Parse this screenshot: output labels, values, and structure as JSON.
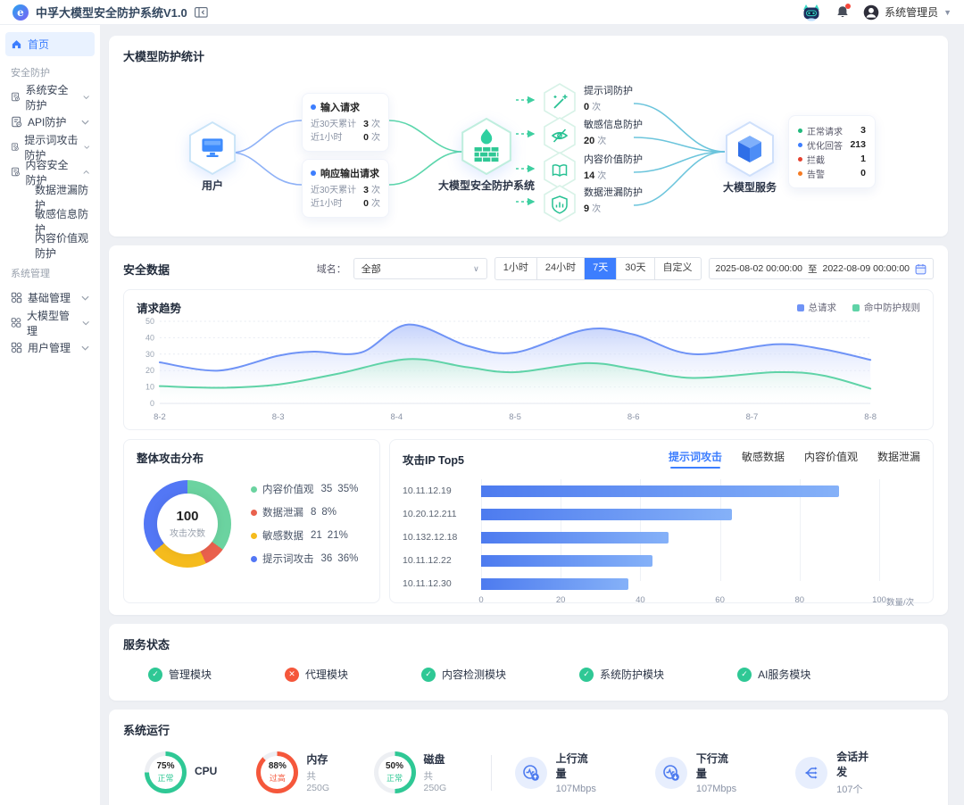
{
  "header": {
    "title": "中孚大模型安全防护系统V1.0",
    "user": "系统管理员"
  },
  "sidebar": {
    "items": [
      {
        "label": "首页"
      },
      {
        "label": "安全防护"
      },
      {
        "label": "系统安全防护"
      },
      {
        "label": "API防护"
      },
      {
        "label": "提示词攻击防护"
      },
      {
        "label": "内容安全防护"
      },
      {
        "label": "数据泄漏防护"
      },
      {
        "label": "敏感信息防护"
      },
      {
        "label": "内容价值观防护"
      },
      {
        "label": "系统管理"
      },
      {
        "label": "基础管理"
      },
      {
        "label": "大模型管理"
      },
      {
        "label": "用户管理"
      }
    ]
  },
  "flow": {
    "title": "大模型防护统计",
    "user_label": "用户",
    "input_card": {
      "title": "输入请求",
      "rows": [
        {
          "k": "近30天累计",
          "v": "3",
          "u": "次"
        },
        {
          "k": "近1小时",
          "v": "0",
          "u": "次"
        }
      ]
    },
    "output_card": {
      "title": "响应输出请求",
      "rows": [
        {
          "k": "近30天累计",
          "v": "3",
          "u": "次"
        },
        {
          "k": "近1小时",
          "v": "0",
          "u": "次"
        }
      ]
    },
    "firewall_label": "大模型安全防护系统",
    "nodes": [
      {
        "name": "提示词防护",
        "count": "0",
        "unit": "次"
      },
      {
        "name": "敏感信息防护",
        "count": "20",
        "unit": "次"
      },
      {
        "name": "内容价值防护",
        "count": "14",
        "unit": "次"
      },
      {
        "name": "数据泄漏防护",
        "count": "9",
        "unit": "次"
      }
    ],
    "service_label": "大模型服务",
    "stats": [
      {
        "name": "正常请求",
        "value": "3",
        "color": "#21b97d"
      },
      {
        "name": "优化回答",
        "value": "213",
        "color": "#3d7efe"
      },
      {
        "name": "拦截",
        "value": "1",
        "color": "#e5412f"
      },
      {
        "name": "告警",
        "value": "0",
        "color": "#f57b23"
      }
    ]
  },
  "security": {
    "title": "安全数据",
    "domain_label": "域名：",
    "domain_value": "全部",
    "ranges": [
      "1小时",
      "24小时",
      "7天",
      "30天",
      "自定义"
    ],
    "active_index": 2,
    "date_start": "2025-08-02 00:00:00",
    "date_to": "至",
    "date_end": "2022-08-09 00:00:00"
  },
  "chart_data": [
    {
      "type": "area",
      "title": "请求趋势",
      "x_labels": [
        "8-2",
        "8-3",
        "8-4",
        "8-5",
        "8-6",
        "8-7",
        "8-8"
      ],
      "yticks": [
        0,
        10,
        20,
        30,
        40,
        50
      ],
      "ylim": [
        0,
        50
      ],
      "legend_position": "top-right",
      "grid": "dotted",
      "series": [
        {
          "name": "总请求",
          "color": "#6f93f6",
          "fill": "#b9c9fa",
          "points": [
            [
              0,
              25
            ],
            [
              0.5,
              20
            ],
            [
              1,
              29
            ],
            [
              1.3,
              31.5
            ],
            [
              1.7,
              31
            ],
            [
              2.1,
              48
            ],
            [
              2.6,
              35
            ],
            [
              3,
              31
            ],
            [
              3.6,
              45
            ],
            [
              4,
              42
            ],
            [
              4.5,
              30
            ],
            [
              5.2,
              36
            ],
            [
              5.6,
              33
            ],
            [
              6,
              26.5
            ]
          ]
        },
        {
          "name": "命中防护规则",
          "color": "#5fd3a7",
          "fill": "#c6eedd",
          "points": [
            [
              0,
              10.5
            ],
            [
              0.5,
              9.5
            ],
            [
              1,
              11.5
            ],
            [
              1.5,
              18
            ],
            [
              2.1,
              27
            ],
            [
              2.6,
              22
            ],
            [
              3,
              19
            ],
            [
              3.6,
              24.5
            ],
            [
              4,
              21
            ],
            [
              4.5,
              15.5
            ],
            [
              5.2,
              19
            ],
            [
              5.6,
              17
            ],
            [
              6,
              9
            ]
          ]
        }
      ]
    },
    {
      "type": "pie",
      "title": "整体攻击分布",
      "center_value": "100",
      "center_label": "攻击次数",
      "slices": [
        {
          "name": "内容价值观",
          "value": 35,
          "pct": "35%",
          "color": "#6bd3a0"
        },
        {
          "name": "数据泄漏",
          "value": 8,
          "pct": "8%",
          "color": "#e9614d"
        },
        {
          "name": "敏感数据",
          "value": 21,
          "pct": "21%",
          "color": "#f5bb1d"
        },
        {
          "name": "提示词攻击",
          "value": 36,
          "pct": "36%",
          "color": "#5377f5"
        }
      ]
    },
    {
      "type": "bar",
      "title": "攻击IP Top5",
      "tabs": [
        "提示词攻击",
        "敏感数据",
        "内容价值观",
        "数据泄漏"
      ],
      "active_tab": 0,
      "categories": [
        "10.11.12.19",
        "10.20.12.211",
        "10.132.12.18",
        "10.11.12.22",
        "10.11.12.30"
      ],
      "values": [
        90,
        63,
        47,
        43,
        37
      ],
      "xticks": [
        "0",
        "20",
        "40",
        "60",
        "80",
        "100"
      ],
      "xlim": [
        0,
        100
      ],
      "xunit": "数量/次"
    }
  ],
  "services": {
    "title": "服务状态",
    "items": [
      {
        "label": "管理模块",
        "status": "ok"
      },
      {
        "label": "代理模块",
        "status": "error"
      },
      {
        "label": "内容检测模块",
        "status": "ok"
      },
      {
        "label": "系统防护模块",
        "status": "ok"
      },
      {
        "label": "AI服务模块",
        "status": "ok"
      }
    ]
  },
  "system": {
    "title": "系统运行",
    "gauges": [
      {
        "pct": 75,
        "pct_label": "75%",
        "status": "正常",
        "label": "CPU",
        "sub": "",
        "state": "ok"
      },
      {
        "pct": 88,
        "pct_label": "88%",
        "status": "过高",
        "label": "内存",
        "sub": "共250G",
        "state": "high"
      },
      {
        "pct": 50,
        "pct_label": "50%",
        "status": "正常",
        "label": "磁盘",
        "sub": "共250G",
        "state": "ok"
      }
    ],
    "traffic": [
      {
        "label": "上行流量",
        "value": "107Mbps"
      },
      {
        "label": "下行流量",
        "value": "107Mbps"
      },
      {
        "label": "会话并发",
        "value": "107个"
      }
    ]
  }
}
